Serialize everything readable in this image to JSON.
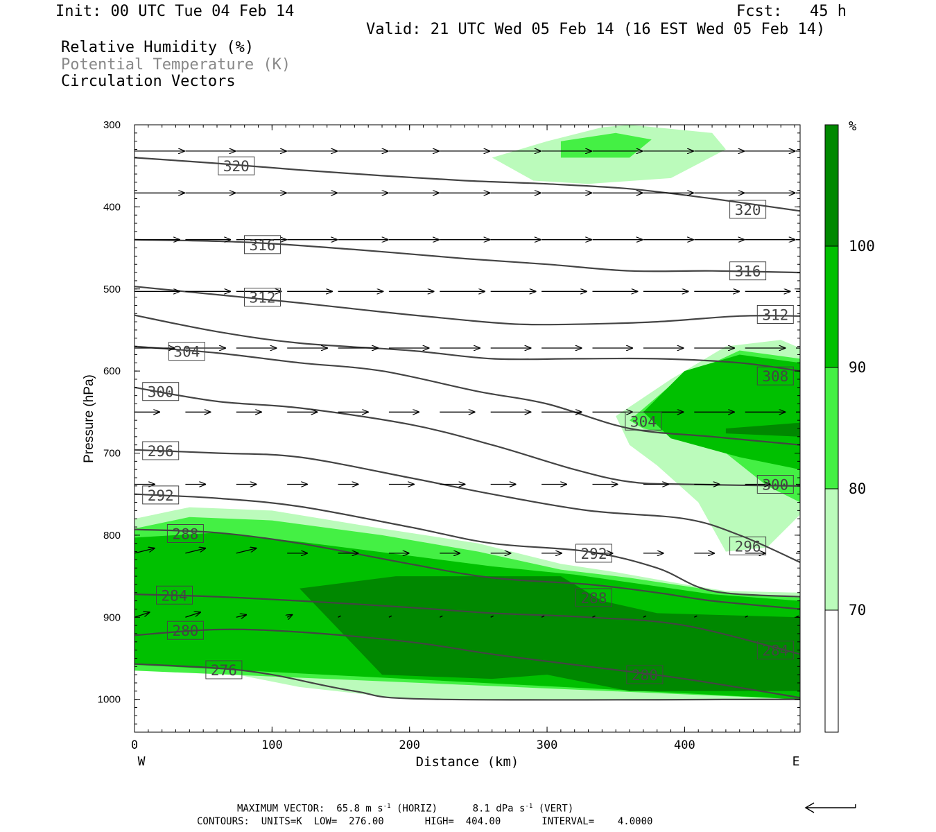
{
  "header": {
    "init": "Init: 00 UTC Tue 04 Feb 14",
    "fcst": "Fcst:   45 h",
    "valid": "Valid: 21 UTC Wed 05 Feb 14 (16 EST Wed 05 Feb 14)",
    "field1": "Relative Humidity (%)",
    "field2": "Potential Temperature (K)",
    "field3": "Circulation Vectors"
  },
  "footer": {
    "max_vector_prefix": "MAXIMUM VECTOR:  65.8 m s",
    "max_vector_horiz": " (HORIZ)",
    "max_vector_vert_prefix": "8.1 dPa s",
    "max_vector_vert": " (VERT)",
    "exp": "-1",
    "contours": "CONTOURS:  UNITS=K  LOW=  276.00       HIGH=  404.00       INTERVAL=    4.0000"
  },
  "colors": {
    "rh70": "#bbfbbb",
    "rh80": "#44f044",
    "rh90": "#00c000",
    "rh100": "#008800",
    "theta_line": "#444444"
  },
  "chart_data": {
    "type": "heatmap",
    "title": "Relative Humidity (%) / Potential Temperature (K) / Circulation Vectors",
    "xlabel": "Distance (km)",
    "ylabel": "Pressure (hPa)",
    "xlim": [
      0,
      484
    ],
    "ylim": [
      1040,
      300
    ],
    "x_ticks": [
      0,
      100,
      200,
      300,
      400
    ],
    "y_ticks": [
      300,
      400,
      500,
      600,
      700,
      800,
      900,
      1000
    ],
    "x_end_labels": {
      "left": "W",
      "right": "E"
    },
    "colorbar": {
      "unit": "%",
      "levels": [
        70,
        80,
        90,
        100
      ],
      "colors": [
        "#ffffff",
        "#bbfbbb",
        "#44f044",
        "#00c000",
        "#008800"
      ]
    },
    "theta_contours": [
      {
        "value": 320,
        "x": [
          0,
          60,
          120,
          180,
          240,
          300,
          360,
          420,
          484
        ],
        "p": [
          340,
          347,
          355,
          362,
          368,
          372,
          378,
          390,
          405
        ]
      },
      {
        "value": 316,
        "x": [
          0,
          80,
          160,
          240,
          300,
          360,
          420,
          484
        ],
        "p": [
          440,
          443,
          452,
          463,
          470,
          478,
          478,
          480
        ]
      },
      {
        "value": 312,
        "x": [
          0,
          60,
          120,
          180,
          240,
          280,
          320,
          380,
          440,
          484
        ],
        "p": [
          497,
          507,
          517,
          528,
          538,
          543,
          543,
          540,
          533,
          533
        ]
      },
      {
        "value": 308,
        "x": [
          0,
          60,
          120,
          200,
          260,
          320,
          380,
          440,
          484
        ],
        "p": [
          532,
          552,
          566,
          575,
          585,
          585,
          585,
          590,
          600
        ]
      },
      {
        "value": 304,
        "x": [
          0,
          60,
          120,
          180,
          250,
          300,
          360,
          420,
          484
        ],
        "p": [
          570,
          578,
          590,
          600,
          625,
          640,
          670,
          680,
          690
        ]
      },
      {
        "value": 300,
        "x": [
          0,
          60,
          120,
          200,
          260,
          320,
          360,
          400,
          484
        ],
        "p": [
          620,
          637,
          645,
          665,
          690,
          720,
          735,
          738,
          740
        ]
      },
      {
        "value": 296,
        "x": [
          0,
          60,
          120,
          200,
          260,
          330,
          400,
          440,
          484
        ],
        "p": [
          696,
          700,
          705,
          730,
          750,
          770,
          780,
          800,
          833
        ]
      },
      {
        "value": 292,
        "x": [
          0,
          60,
          120,
          200,
          260,
          330,
          380,
          420,
          484
        ],
        "p": [
          750,
          755,
          765,
          790,
          810,
          820,
          840,
          868,
          875
        ]
      },
      {
        "value": 288,
        "x": [
          0,
          60,
          120,
          200,
          260,
          330,
          380,
          420,
          484
        ],
        "p": [
          793,
          797,
          810,
          835,
          852,
          860,
          870,
          880,
          890
        ]
      },
      {
        "value": 284,
        "x": [
          0,
          60,
          120,
          200,
          260,
          330,
          400,
          484
        ],
        "p": [
          872,
          875,
          880,
          888,
          895,
          900,
          910,
          945
        ]
      },
      {
        "value": 280,
        "x": [
          0,
          60,
          120,
          200,
          260,
          330,
          400,
          484
        ],
        "p": [
          922,
          915,
          918,
          930,
          945,
          960,
          975,
          998
        ]
      },
      {
        "value": 276,
        "x": [
          0,
          60,
          100,
          160,
          220,
          484
        ],
        "p": [
          957,
          962,
          970,
          990,
          1000,
          1000
        ]
      }
    ],
    "contour_labels": [
      {
        "text": "320",
        "x": 74,
        "p": 350
      },
      {
        "text": "320",
        "x": 446,
        "p": 403
      },
      {
        "text": "316",
        "x": 93,
        "p": 446
      },
      {
        "text": "316",
        "x": 446,
        "p": 478
      },
      {
        "text": "312",
        "x": 93,
        "p": 510
      },
      {
        "text": "312",
        "x": 466,
        "p": 531
      },
      {
        "text": "304",
        "x": 38,
        "p": 576
      },
      {
        "text": "308",
        "x": 466,
        "p": 606
      },
      {
        "text": "300",
        "x": 19,
        "p": 625
      },
      {
        "text": "304",
        "x": 370,
        "p": 661
      },
      {
        "text": "296",
        "x": 19,
        "p": 697
      },
      {
        "text": "300",
        "x": 466,
        "p": 738
      },
      {
        "text": "292",
        "x": 19,
        "p": 751
      },
      {
        "text": "296",
        "x": 446,
        "p": 813
      },
      {
        "text": "288",
        "x": 37,
        "p": 798
      },
      {
        "text": "292",
        "x": 334,
        "p": 822
      },
      {
        "text": "284",
        "x": 29,
        "p": 873
      },
      {
        "text": "288",
        "x": 334,
        "p": 876
      },
      {
        "text": "280",
        "x": 37,
        "p": 916
      },
      {
        "text": "284",
        "x": 466,
        "p": 940
      },
      {
        "text": "276",
        "x": 65,
        "p": 964
      },
      {
        "text": "280",
        "x": 371,
        "p": 970
      }
    ],
    "rh_regions": [
      {
        "level": 70,
        "x": [
          0,
          40,
          100,
          180,
          250,
          310,
          350,
          400,
          430,
          484,
          484,
          430,
          400,
          340,
          280,
          200,
          120,
          60,
          0
        ],
        "p": [
          780,
          766,
          770,
          792,
          810,
          835,
          845,
          860,
          868,
          870,
          1000,
          1000,
          1000,
          1000,
          1000,
          1000,
          985,
          965,
          960
        ]
      },
      {
        "level": 80,
        "x": [
          0,
          40,
          100,
          180,
          250,
          310,
          360,
          400,
          440,
          484,
          484,
          0
        ],
        "p": [
          792,
          778,
          782,
          800,
          820,
          842,
          852,
          862,
          872,
          876,
          1000,
          965
        ]
      },
      {
        "level": 90,
        "x": [
          0,
          60,
          120,
          200,
          260,
          320,
          370,
          420,
          484,
          484,
          0
        ],
        "p": [
          803,
          797,
          808,
          825,
          838,
          848,
          860,
          872,
          880,
          1000,
          958
        ]
      },
      {
        "level": 100,
        "x": [
          120,
          190,
          310,
          340,
          380,
          484,
          484,
          410,
          360,
          300,
          260,
          180,
          120
        ],
        "p": [
          865,
          850,
          850,
          880,
          895,
          900,
          990,
          990,
          990,
          970,
          975,
          970,
          865
        ]
      },
      {
        "level": 70,
        "x": [
          350,
          390,
          430,
          470,
          484,
          484,
          460,
          430,
          410,
          400,
          380,
          360,
          350
        ],
        "p": [
          655,
          610,
          570,
          562,
          572,
          775,
          815,
          820,
          760,
          745,
          715,
          690,
          655
        ]
      },
      {
        "level": 80,
        "x": [
          360,
          395,
          440,
          484,
          484,
          460,
          430,
          400,
          370,
          360
        ],
        "p": [
          660,
          610,
          575,
          585,
          760,
          740,
          700,
          680,
          670,
          660
        ]
      },
      {
        "level": 90,
        "x": [
          370,
          400,
          440,
          484,
          484,
          440,
          390,
          370
        ],
        "p": [
          650,
          600,
          580,
          590,
          720,
          705,
          682,
          650
        ]
      },
      {
        "level": 100,
        "x": [
          430,
          484,
          484,
          430
        ],
        "p": [
          670,
          663,
          680,
          676
        ]
      },
      {
        "level": 70,
        "x": [
          260,
          300,
          340,
          360,
          420,
          430,
          390,
          330,
          290,
          260
        ],
        "p": [
          340,
          320,
          303,
          300,
          310,
          330,
          365,
          372,
          368,
          340
        ]
      },
      {
        "level": 80,
        "x": [
          310,
          350,
          376,
          360,
          310
        ],
        "p": [
          320,
          310,
          318,
          340,
          340
        ]
      }
    ],
    "vectors": [
      {
        "p": 332,
        "x": [
          0,
          37,
          74,
          111,
          148,
          185,
          222,
          259,
          296,
          333,
          370,
          407,
          444,
          481
        ],
        "u": [
          1,
          1,
          1,
          1,
          1,
          1,
          1,
          1,
          1,
          1,
          1,
          1,
          1,
          1
        ],
        "v": [
          0,
          0,
          0,
          0,
          0,
          0,
          0,
          0,
          0,
          0,
          0,
          0,
          0,
          0
        ]
      },
      {
        "p": 383,
        "x": [
          0,
          37,
          74,
          111,
          148,
          185,
          222,
          259,
          296,
          333,
          370,
          407,
          444,
          481
        ],
        "u": [
          1,
          1,
          1,
          1,
          1,
          1,
          1,
          1,
          1,
          1,
          1,
          1,
          1,
          1
        ],
        "v": [
          0,
          0,
          0,
          0,
          0,
          0,
          0,
          0,
          0,
          0,
          0,
          0,
          0,
          0
        ]
      },
      {
        "p": 440,
        "x": [
          0,
          37,
          74,
          111,
          148,
          185,
          222,
          259,
          296,
          333,
          370,
          407,
          444,
          481
        ],
        "u": [
          0.9,
          0.9,
          1,
          1,
          1,
          1,
          1,
          1,
          1,
          1,
          1,
          1,
          1,
          1
        ],
        "v": [
          0,
          0,
          0,
          0,
          0,
          0,
          0,
          0,
          0,
          0,
          0,
          0,
          0,
          0
        ]
      },
      {
        "p": 503,
        "x": [
          0,
          37,
          74,
          111,
          148,
          185,
          222,
          259,
          296,
          333,
          370,
          407,
          444,
          481
        ],
        "u": [
          0.9,
          0.9,
          0.9,
          0.9,
          0.9,
          0.9,
          0.9,
          0.9,
          0.9,
          0.9,
          0.9,
          0.9,
          0.9,
          0.9
        ],
        "v": [
          0,
          0,
          0,
          0,
          0,
          0,
          0,
          0,
          0,
          0,
          0,
          0,
          0,
          0
        ]
      },
      {
        "p": 572,
        "x": [
          0,
          37,
          74,
          111,
          148,
          185,
          222,
          259,
          296,
          333,
          370,
          407,
          444,
          481
        ],
        "u": [
          0.8,
          0.8,
          0.8,
          0.8,
          0.8,
          0.8,
          0.8,
          0.8,
          0.8,
          0.8,
          0.8,
          0.8,
          0.8,
          0.8
        ],
        "v": [
          0,
          0,
          0,
          0,
          0,
          0,
          0,
          0,
          0,
          0,
          0,
          0,
          0,
          0
        ]
      },
      {
        "p": 650,
        "x": [
          0,
          37,
          74,
          111,
          148,
          185,
          222,
          259,
          296,
          333,
          370,
          407,
          444,
          481
        ],
        "u": [
          0.5,
          0.5,
          0.5,
          0.6,
          0.6,
          0.6,
          0.7,
          0.8,
          0.8,
          0.8,
          0.8,
          0.8,
          0.8,
          0.8
        ],
        "v": [
          0,
          0,
          0,
          0,
          0,
          0,
          0,
          0,
          0,
          0,
          0,
          0,
          0,
          0
        ]
      },
      {
        "p": 738,
        "x": [
          0,
          37,
          74,
          111,
          148,
          185,
          222,
          259,
          296,
          333,
          370,
          407,
          444,
          481
        ],
        "u": [
          0.4,
          0.4,
          0.4,
          0.4,
          0.4,
          0.5,
          0.5,
          0.5,
          0.5,
          0.5,
          0.5,
          0.5,
          0.5,
          0.5
        ],
        "v": [
          0,
          0,
          0,
          0,
          0,
          0,
          0,
          0,
          0,
          0,
          0,
          0,
          0,
          0
        ]
      },
      {
        "p": 822,
        "x": [
          0,
          37,
          74,
          111,
          148,
          185,
          222,
          259,
          296,
          333,
          370,
          407,
          444,
          481
        ],
        "u": [
          0.4,
          0.4,
          0.4,
          0.4,
          0.4,
          0.4,
          0.4,
          0.4,
          0.4,
          0.4,
          0.4,
          0.4,
          0.4,
          0.4
        ],
        "v": [
          0.1,
          0.1,
          0.1,
          0,
          0,
          0,
          0,
          0,
          0,
          0,
          0,
          0,
          0,
          0
        ]
      },
      {
        "p": 900,
        "x": [
          0,
          37,
          74,
          111,
          148,
          185,
          222,
          259,
          296,
          333,
          370,
          407,
          444,
          481
        ],
        "u": [
          0.3,
          0.3,
          0.2,
          0.1,
          0.05,
          0.05,
          0.05,
          0.05,
          0.05,
          0.05,
          0.05,
          0.05,
          0.05,
          0.05
        ],
        "v": [
          0.1,
          0.1,
          0.05,
          0.05,
          0,
          0,
          0,
          0,
          0,
          0,
          0,
          0,
          0,
          0
        ]
      }
    ],
    "reference_vector": {
      "direction": "left"
    }
  }
}
